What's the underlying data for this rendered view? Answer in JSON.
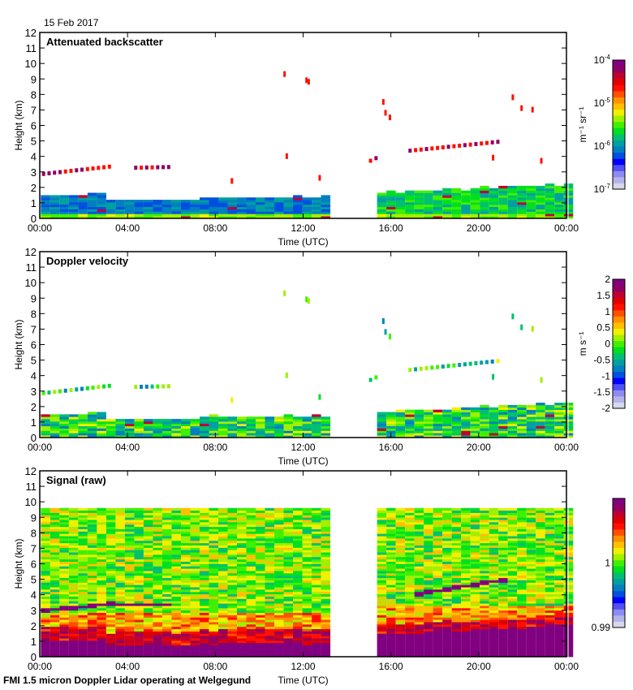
{
  "header": {
    "date": "15 Feb 2017"
  },
  "footer": {
    "caption": "FMI 1.5 micron Doppler Lidar operating at Welgegund"
  },
  "colormap": [
    "#d8d8ec",
    "#b4b4ec",
    "#8c8cf0",
    "#5050f4",
    "#0000ff",
    "#0050e0",
    "#0080c0",
    "#00a0a0",
    "#00c070",
    "#00e020",
    "#40f000",
    "#a0f000",
    "#f0f000",
    "#ffc000",
    "#ff9000",
    "#ff5000",
    "#ff1000",
    "#e00000",
    "#c00030",
    "#900060",
    "#800080"
  ],
  "chart_data": [
    {
      "type": "heatmap",
      "title": "Attenuated backscatter",
      "xlabel": "Time (UTC)",
      "ylabel": "Height (km)",
      "xlim": [
        0,
        24
      ],
      "ylim": [
        0,
        12
      ],
      "xticks": [
        "00:00",
        "04:00",
        "08:00",
        "12:00",
        "16:00",
        "20:00",
        "00:00"
      ],
      "yticks": [
        "0",
        "1",
        "2",
        "3",
        "4",
        "5",
        "6",
        "7",
        "8",
        "9",
        "10",
        "11",
        "12"
      ],
      "colorbar": {
        "label": "m⁻¹ sr⁻¹",
        "scale": "log",
        "range": [
          1e-07,
          0.0001
        ],
        "ticks": [
          {
            "value": -7,
            "label": "10",
            "exp": "-7"
          },
          {
            "value": -6,
            "label": "10",
            "exp": "-6"
          },
          {
            "value": -5,
            "label": "10",
            "exp": "-5"
          },
          {
            "value": -4,
            "label": "10",
            "exp": "-4"
          }
        ]
      },
      "data_gap_hours": [
        13.0,
        15.0
      ],
      "features": {
        "boundary_layer": [
          {
            "t0": 0,
            "t1": 13,
            "top_km": [
              1.4,
              1.6,
              1.5,
              1.1,
              1.2,
              1.5,
              1.3
            ]
          },
          {
            "t0": 15,
            "t1": 24,
            "top_km": [
              1.5,
              1.5,
              1.6,
              1.8,
              2.0,
              2.2,
              2.1
            ]
          }
        ],
        "cloud_layers": [
          {
            "t0": 0.1,
            "t1": 3.3,
            "h0": 2.85,
            "h1": 3.35
          },
          {
            "t0": 4.3,
            "t1": 6.0,
            "h0": 3.25,
            "h1": 3.3
          },
          {
            "t0": 17.0,
            "t1": 21.0,
            "h0": 4.0,
            "h1": 4.9
          },
          {
            "t0": 15.0,
            "t1": 15.3,
            "h0": 3.7,
            "h1": 3.9
          }
        ],
        "high_clouds_km": [
          {
            "t": 11.1,
            "h": 9.2
          },
          {
            "t": 12.1,
            "h": 8.8
          },
          {
            "t": 15.7,
            "h": 7.0
          },
          {
            "t": 21.8,
            "h": 7.2
          }
        ]
      }
    },
    {
      "type": "heatmap",
      "title": "Doppler velocity",
      "xlabel": "Time (UTC)",
      "ylabel": "Height (km)",
      "xlim": [
        0,
        24
      ],
      "ylim": [
        0,
        12
      ],
      "xticks": [
        "00:00",
        "04:00",
        "08:00",
        "12:00",
        "16:00",
        "20:00",
        "00:00"
      ],
      "yticks": [
        "0",
        "1",
        "2",
        "3",
        "4",
        "5",
        "6",
        "7",
        "8",
        "9",
        "10",
        "11",
        "12"
      ],
      "colorbar": {
        "label": "m s⁻¹",
        "scale": "linear",
        "range": [
          -2,
          2
        ],
        "ticks": [
          {
            "value": -2,
            "label": "-2"
          },
          {
            "value": -1.5,
            "label": "-1.5"
          },
          {
            "value": -1,
            "label": "-1"
          },
          {
            "value": -0.5,
            "label": "-0.5"
          },
          {
            "value": 0,
            "label": "0"
          },
          {
            "value": 0.5,
            "label": "0.5"
          },
          {
            "value": 1,
            "label": "1"
          },
          {
            "value": 1.5,
            "label": "1.5"
          },
          {
            "value": 2,
            "label": "2"
          }
        ]
      },
      "data_gap_hours": [
        13.0,
        15.0
      ]
    },
    {
      "type": "heatmap",
      "title": "Signal (raw)",
      "xlabel": "Time (UTC)",
      "ylabel": "Height (km)",
      "xlim": [
        0,
        24
      ],
      "ylim": [
        0,
        12
      ],
      "xticks": [
        "00:00",
        "04:00",
        "08:00",
        "12:00",
        "16:00",
        "20:00",
        "00:00"
      ],
      "yticks": [
        "0",
        "1",
        "2",
        "3",
        "4",
        "5",
        "6",
        "7",
        "8",
        "9",
        "10",
        "11",
        "12"
      ],
      "colorbar": {
        "label": "",
        "scale": "linear",
        "range": [
          0.99,
          1.01
        ],
        "ticks": [
          {
            "value": 0.99,
            "label": "0.99"
          },
          {
            "value": 1,
            "label": "1"
          }
        ]
      },
      "data_gap_hours": [
        13.0,
        15.0
      ],
      "max_range_km": 9.6
    }
  ]
}
